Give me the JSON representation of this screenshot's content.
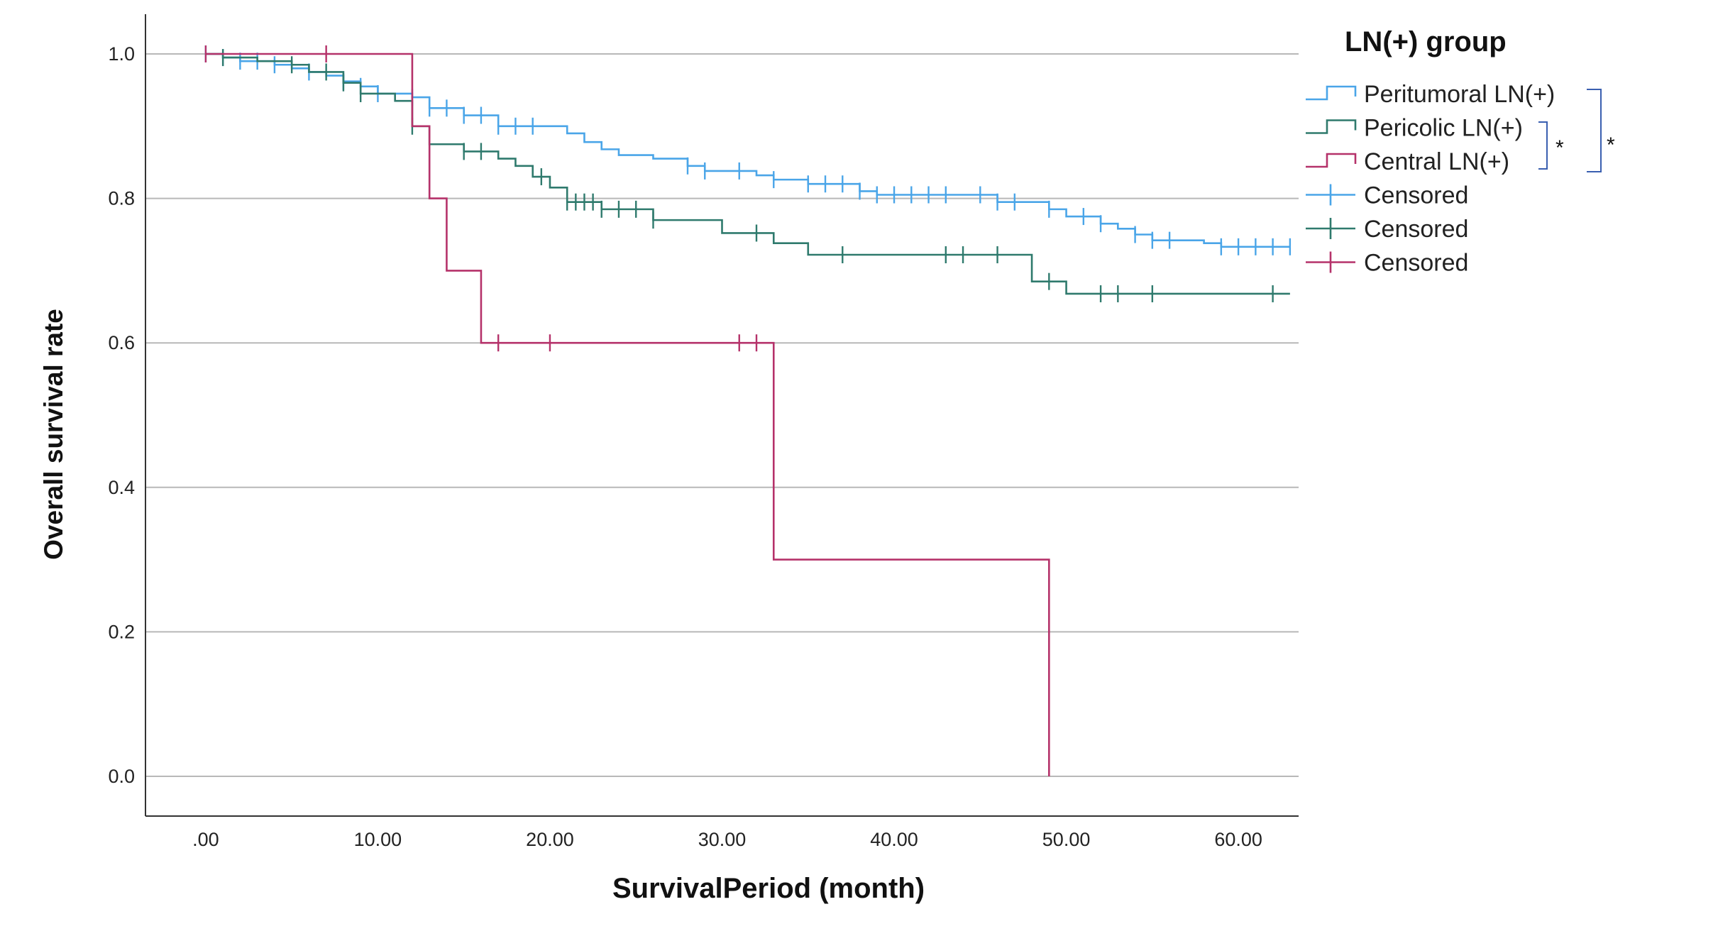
{
  "chart_data": {
    "type": "line",
    "subtype": "kaplan-meier",
    "xlabel": "SurvivalPeriod (month)",
    "ylabel": "Overall survival rate",
    "xlim": [
      -3.5,
      63.5
    ],
    "ylim": [
      -0.055,
      1.055
    ],
    "x_ticks": [
      0,
      10,
      20,
      30,
      40,
      50,
      60
    ],
    "x_tick_labels": [
      ".00",
      "10.00",
      "20.00",
      "30.00",
      "40.00",
      "50.00",
      "60.00"
    ],
    "y_ticks": [
      0,
      0.2,
      0.4,
      0.6,
      0.8,
      1.0
    ],
    "y_tick_labels": [
      "0.0",
      "0.2",
      "0.4",
      "0.6",
      "0.8",
      "1.0"
    ],
    "grid": "horizontal",
    "legend": {
      "title": "LN(+) group",
      "placement": "top-right-outside",
      "entries": [
        {
          "label": "Peritumoral LN(+)",
          "kind": "line",
          "color": "#4aa5e8"
        },
        {
          "label": "Pericolic LN(+)",
          "kind": "line",
          "color": "#2f7a6d"
        },
        {
          "label": "Central LN(+)",
          "kind": "line",
          "color": "#b5326a"
        },
        {
          "label": "Censored",
          "kind": "censor",
          "color": "#4aa5e8"
        },
        {
          "label": "Censored",
          "kind": "censor",
          "color": "#2f7a6d"
        },
        {
          "label": "Censored",
          "kind": "censor",
          "color": "#b5326a"
        }
      ]
    },
    "significance": [
      {
        "between": [
          "Pericolic LN(+)",
          "Central LN(+)"
        ],
        "mark": "*"
      },
      {
        "between": [
          "Peritumoral LN(+)",
          "Central LN(+)"
        ],
        "mark": "*"
      }
    ],
    "series": [
      {
        "name": "Peritumoral LN(+)",
        "color": "#4aa5e8",
        "steps": [
          [
            0,
            1.0
          ],
          [
            1,
            0.995
          ],
          [
            2,
            0.99
          ],
          [
            4,
            0.985
          ],
          [
            5,
            0.98
          ],
          [
            6,
            0.975
          ],
          [
            7,
            0.97
          ],
          [
            8,
            0.962
          ],
          [
            9,
            0.955
          ],
          [
            10,
            0.945
          ],
          [
            12,
            0.94
          ],
          [
            13,
            0.925
          ],
          [
            15,
            0.915
          ],
          [
            17,
            0.9
          ],
          [
            21,
            0.89
          ],
          [
            22,
            0.878
          ],
          [
            23,
            0.868
          ],
          [
            24,
            0.86
          ],
          [
            26,
            0.855
          ],
          [
            28,
            0.845
          ],
          [
            29,
            0.838
          ],
          [
            32,
            0.832
          ],
          [
            33,
            0.826
          ],
          [
            35,
            0.82
          ],
          [
            38,
            0.81
          ],
          [
            39,
            0.805
          ],
          [
            46,
            0.795
          ],
          [
            49,
            0.785
          ],
          [
            50,
            0.775
          ],
          [
            52,
            0.765
          ],
          [
            53,
            0.758
          ],
          [
            54,
            0.75
          ],
          [
            55,
            0.742
          ],
          [
            58,
            0.738
          ],
          [
            59,
            0.733
          ]
        ],
        "end_x": 63,
        "censored_x": [
          0,
          1,
          2,
          3,
          4,
          6,
          8,
          9,
          10,
          12,
          13,
          14,
          15,
          16,
          17,
          18,
          19,
          28,
          29,
          31,
          33,
          35,
          36,
          37,
          38,
          39,
          40,
          41,
          42,
          43,
          45,
          46,
          47,
          49,
          51,
          52,
          54,
          55,
          56,
          59,
          60,
          61,
          62,
          63
        ]
      },
      {
        "name": "Pericolic LN(+)",
        "color": "#2f7a6d",
        "steps": [
          [
            0,
            1.0
          ],
          [
            1,
            0.995
          ],
          [
            3,
            0.99
          ],
          [
            5,
            0.985
          ],
          [
            6,
            0.975
          ],
          [
            8,
            0.96
          ],
          [
            9,
            0.945
          ],
          [
            11,
            0.935
          ],
          [
            12,
            0.9
          ],
          [
            13,
            0.875
          ],
          [
            15,
            0.865
          ],
          [
            17,
            0.855
          ],
          [
            18,
            0.845
          ],
          [
            19,
            0.83
          ],
          [
            20,
            0.815
          ],
          [
            21,
            0.795
          ],
          [
            23,
            0.785
          ],
          [
            26,
            0.77
          ],
          [
            30,
            0.752
          ],
          [
            33,
            0.738
          ],
          [
            35,
            0.722
          ],
          [
            48,
            0.685
          ],
          [
            50,
            0.668
          ]
        ],
        "end_x": 63,
        "censored_x": [
          1,
          5,
          7,
          8,
          9,
          12,
          15,
          16,
          19.5,
          21,
          21.5,
          22,
          22.5,
          23,
          24,
          25,
          26,
          32,
          37,
          43,
          44,
          46,
          49,
          52,
          53,
          55,
          62
        ]
      },
      {
        "name": "Central LN(+)",
        "color": "#b5326a",
        "steps": [
          [
            0,
            1.0
          ],
          [
            12,
            0.9
          ],
          [
            13,
            0.8
          ],
          [
            14,
            0.7
          ],
          [
            16,
            0.6
          ],
          [
            33,
            0.3
          ],
          [
            49,
            0.0
          ]
        ],
        "end_x": 49,
        "censored_x": [
          0,
          7,
          17,
          20,
          31,
          32
        ]
      }
    ]
  }
}
